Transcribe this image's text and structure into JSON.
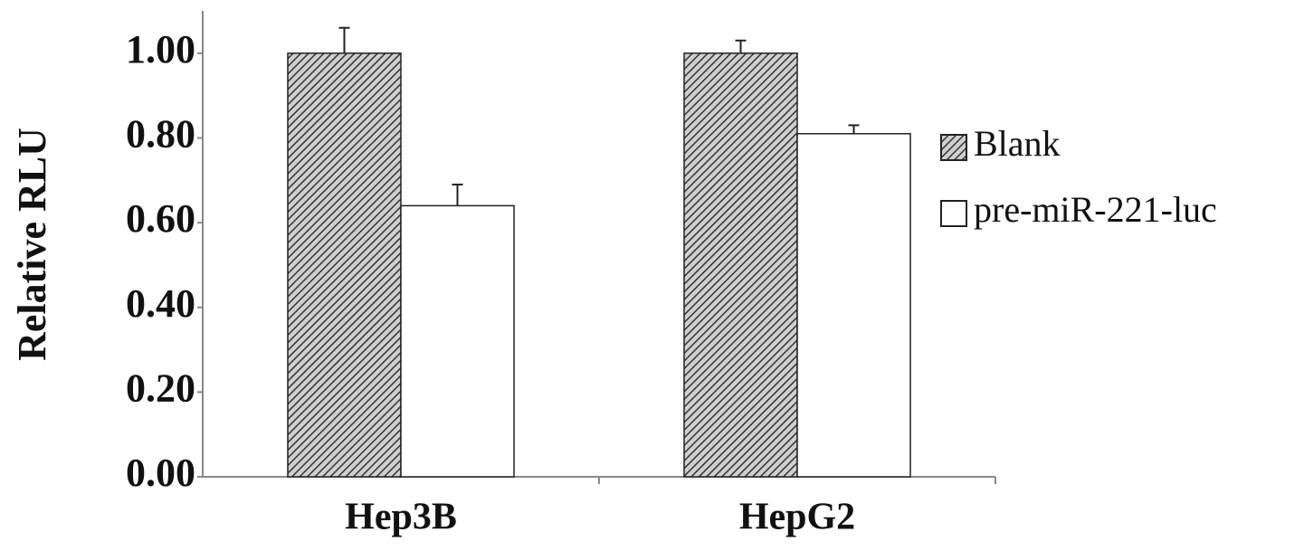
{
  "chart_data": {
    "type": "bar",
    "y_label": "Relative RLU",
    "categories": [
      "Hep3B",
      "HepG2"
    ],
    "series": [
      {
        "name": "Blank",
        "color": "#555555",
        "hatch": true,
        "values": [
          1.0,
          1.0
        ],
        "errors": [
          0.06,
          0.03
        ]
      },
      {
        "name": "pre-miR-221-luc",
        "color": "#ffffff",
        "hatch": false,
        "values": [
          0.64,
          0.81
        ],
        "errors": [
          0.05,
          0.02
        ]
      }
    ],
    "ylim": [
      0,
      1.1
    ],
    "yticks": [
      {
        "value": 0,
        "label": "0.00"
      },
      {
        "value": 0.2,
        "label": "0.20"
      },
      {
        "value": 0.4,
        "label": "0.40"
      },
      {
        "value": 0.6,
        "label": "0.60"
      },
      {
        "value": 0.8,
        "label": "0.80"
      },
      {
        "value": 1,
        "label": "1.00"
      }
    ],
    "grid": false
  }
}
